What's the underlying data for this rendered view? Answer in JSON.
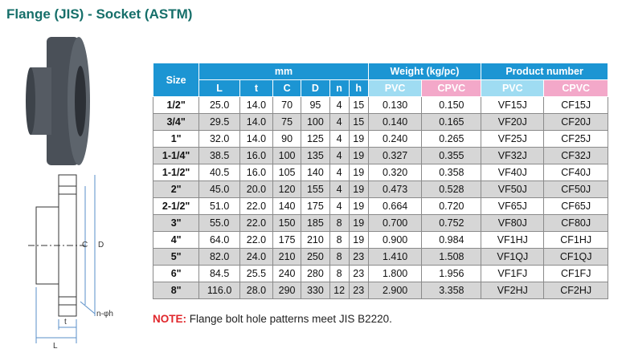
{
  "title": "Flange (JIS) - Socket (ASTM)",
  "drawing": {
    "labels": [
      "C",
      "D",
      "t",
      "L",
      "n-φh"
    ]
  },
  "table": {
    "header": {
      "size": "Size",
      "mm": "mm",
      "weight": "Weight (kg/pc)",
      "product": "Product number",
      "mm_columns": [
        "L",
        "t",
        "C",
        "D",
        "n",
        "h"
      ],
      "weight_columns": [
        "PVC",
        "CPVC"
      ],
      "product_columns": [
        "PVC",
        "CPVC"
      ]
    },
    "rows": [
      [
        "1/2\"",
        "25.0",
        "14.0",
        "70",
        "95",
        "4",
        "15",
        "0.130",
        "0.150",
        "VF15J",
        "CF15J"
      ],
      [
        "3/4\"",
        "29.5",
        "14.0",
        "75",
        "100",
        "4",
        "15",
        "0.140",
        "0.165",
        "VF20J",
        "CF20J"
      ],
      [
        "1\"",
        "32.0",
        "14.0",
        "90",
        "125",
        "4",
        "19",
        "0.240",
        "0.265",
        "VF25J",
        "CF25J"
      ],
      [
        "1-1/4\"",
        "38.5",
        "16.0",
        "100",
        "135",
        "4",
        "19",
        "0.327",
        "0.355",
        "VF32J",
        "CF32J"
      ],
      [
        "1-1/2\"",
        "40.5",
        "16.0",
        "105",
        "140",
        "4",
        "19",
        "0.320",
        "0.358",
        "VF40J",
        "CF40J"
      ],
      [
        "2\"",
        "45.0",
        "20.0",
        "120",
        "155",
        "4",
        "19",
        "0.473",
        "0.528",
        "VF50J",
        "CF50J"
      ],
      [
        "2-1/2\"",
        "51.0",
        "22.0",
        "140",
        "175",
        "4",
        "19",
        "0.664",
        "0.720",
        "VF65J",
        "CF65J"
      ],
      [
        "3\"",
        "55.0",
        "22.0",
        "150",
        "185",
        "8",
        "19",
        "0.700",
        "0.752",
        "VF80J",
        "CF80J"
      ],
      [
        "4\"",
        "64.0",
        "22.0",
        "175",
        "210",
        "8",
        "19",
        "0.900",
        "0.984",
        "VF1HJ",
        "CF1HJ"
      ],
      [
        "5\"",
        "82.0",
        "24.0",
        "210",
        "250",
        "8",
        "23",
        "1.410",
        "1.508",
        "VF1QJ",
        "CF1QJ"
      ],
      [
        "6\"",
        "84.5",
        "25.5",
        "240",
        "280",
        "8",
        "23",
        "1.800",
        "1.956",
        "VF1FJ",
        "CF1FJ"
      ],
      [
        "8\"",
        "116.0",
        "28.0",
        "290",
        "330",
        "12",
        "23",
        "2.900",
        "3.358",
        "VF2HJ",
        "CF2HJ"
      ]
    ]
  },
  "note": {
    "label": "NOTE:",
    "text": "Flange bolt hole patterns meet JIS B2220."
  }
}
